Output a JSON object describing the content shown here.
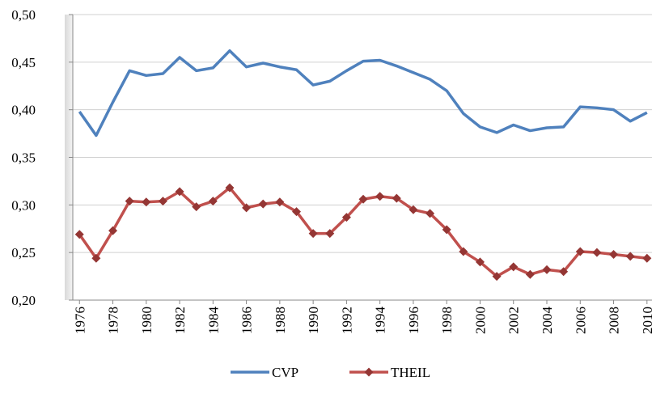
{
  "chart_data": {
    "type": "line",
    "x": [
      1976,
      1977,
      1978,
      1979,
      1980,
      1981,
      1982,
      1983,
      1984,
      1985,
      1986,
      1987,
      1988,
      1989,
      1990,
      1991,
      1992,
      1993,
      1994,
      1995,
      1996,
      1997,
      1998,
      1999,
      2000,
      2001,
      2002,
      2003,
      2004,
      2005,
      2006,
      2007,
      2008,
      2009,
      2010
    ],
    "xlim": [
      1975.6,
      2010.3
    ],
    "xticks": [
      1976,
      1978,
      1980,
      1982,
      1984,
      1986,
      1988,
      1990,
      1992,
      1994,
      1996,
      1998,
      2000,
      2002,
      2004,
      2006,
      2008,
      2010
    ],
    "ylim": [
      0.2,
      0.5
    ],
    "yticks": [
      {
        "value": 0.2,
        "label": "0,20"
      },
      {
        "value": 0.25,
        "label": "0,25"
      },
      {
        "value": 0.3,
        "label": "0,30"
      },
      {
        "value": 0.35,
        "label": "0,35"
      },
      {
        "value": 0.4,
        "label": "0,40"
      },
      {
        "value": 0.45,
        "label": "0,45"
      },
      {
        "value": 0.5,
        "label": "0,50"
      }
    ],
    "grid": true,
    "legend": "bottom",
    "series": [
      {
        "name": "CVP",
        "color": "#4f81bd",
        "marker": "none",
        "values": [
          0.398,
          0.373,
          0.408,
          0.441,
          0.436,
          0.438,
          0.455,
          0.441,
          0.444,
          0.462,
          0.445,
          0.449,
          0.445,
          0.442,
          0.426,
          0.43,
          0.441,
          0.451,
          0.452,
          0.446,
          0.439,
          0.432,
          0.42,
          0.396,
          0.382,
          0.376,
          0.384,
          0.378,
          0.381,
          0.382,
          0.403,
          0.402,
          0.4,
          0.388,
          0.397
        ]
      },
      {
        "name": "THEIL",
        "color": "#c0504d",
        "marker": "diamond",
        "values": [
          0.269,
          0.244,
          0.273,
          0.304,
          0.303,
          0.304,
          0.314,
          0.298,
          0.304,
          0.318,
          0.297,
          0.301,
          0.303,
          0.293,
          0.27,
          0.27,
          0.287,
          0.306,
          0.309,
          0.307,
          0.295,
          0.291,
          0.274,
          0.251,
          0.24,
          0.225,
          0.235,
          0.227,
          0.232,
          0.23,
          0.251,
          0.25,
          0.248,
          0.246,
          0.244
        ]
      }
    ]
  }
}
